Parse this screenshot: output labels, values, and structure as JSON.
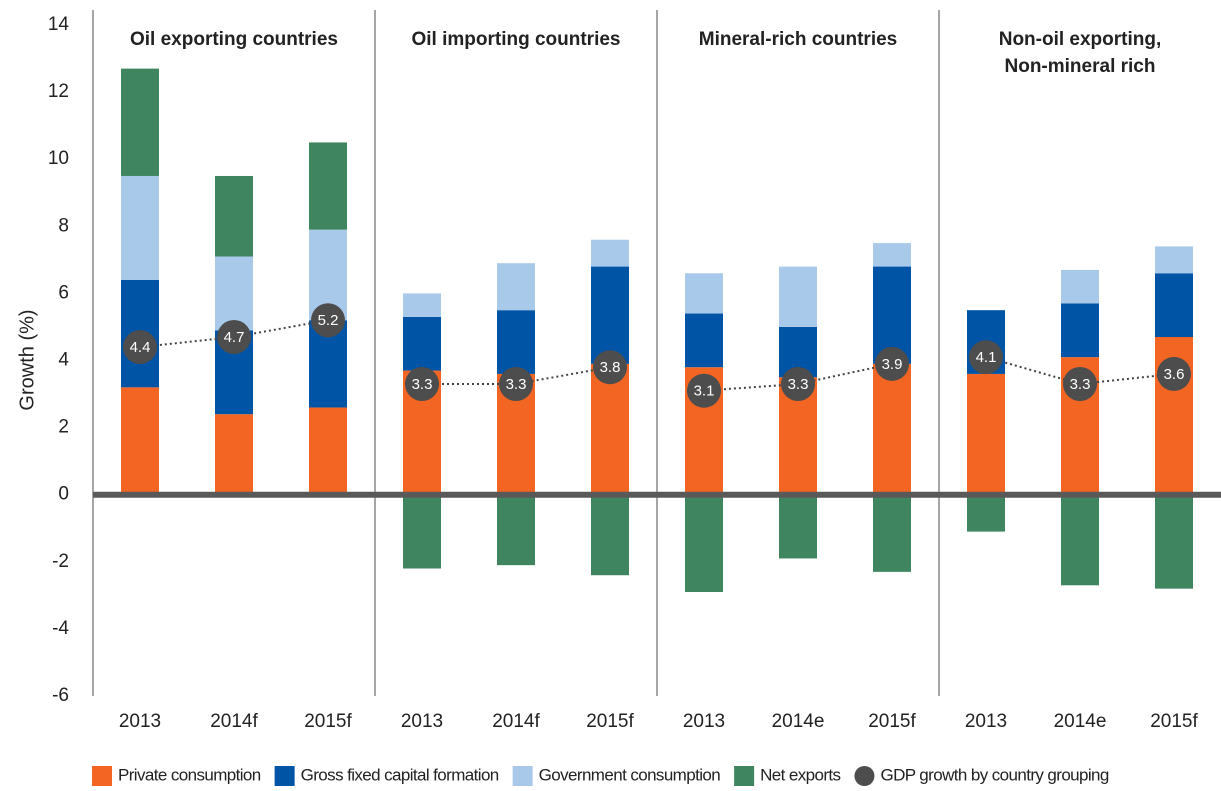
{
  "chart_data": {
    "type": "stacked-bar",
    "y_label": "Growth (%)",
    "ylim": [
      -6,
      14
    ],
    "yticks": [
      -6,
      -4,
      -2,
      0,
      2,
      4,
      6,
      8,
      10,
      12,
      14
    ],
    "categories": [
      "2013",
      "2014f",
      "2015f",
      "2013",
      "2014f",
      "2015f",
      "2013",
      "2014e",
      "2015f",
      "2013",
      "2014e",
      "2015f"
    ],
    "groups": [
      {
        "name": "Oil exporting countries",
        "size": 3
      },
      {
        "name": "Oil importing countries",
        "size": 3
      },
      {
        "name": "Mineral-rich countries",
        "size": 3
      },
      {
        "name": [
          "Non-oil exporting,",
          "Non-mineral rich"
        ],
        "size": 3
      }
    ],
    "series": [
      {
        "name": "Private consumption",
        "color": "#f26522",
        "values": [
          3.2,
          2.4,
          2.6,
          3.7,
          3.6,
          3.9,
          3.8,
          3.5,
          3.9,
          3.6,
          4.1,
          4.7
        ]
      },
      {
        "name": "Gross fixed capital formation",
        "color": "#0054a6",
        "values": [
          3.2,
          2.5,
          2.6,
          1.6,
          1.9,
          2.9,
          1.6,
          1.5,
          2.9,
          1.9,
          1.6,
          1.9
        ]
      },
      {
        "name": "Government consumption",
        "color": "#a9c9ea",
        "values": [
          3.1,
          2.2,
          2.7,
          0.7,
          1.4,
          0.8,
          1.2,
          1.8,
          0.7,
          0,
          1.0,
          0.8
        ]
      },
      {
        "name": "Net exports",
        "color": "#3f8560",
        "values": [
          3.2,
          2.4,
          2.6,
          -2.2,
          -2.1,
          -2.4,
          -2.9,
          -1.9,
          -2.3,
          -1.1,
          -2.7,
          -2.8
        ]
      }
    ],
    "gdp": {
      "name": "GDP growth by country grouping",
      "color": "#4d4d4d",
      "values": [
        4.4,
        4.7,
        5.2,
        3.3,
        3.3,
        3.8,
        3.1,
        3.3,
        3.9,
        4.1,
        3.3,
        3.6
      ]
    }
  }
}
